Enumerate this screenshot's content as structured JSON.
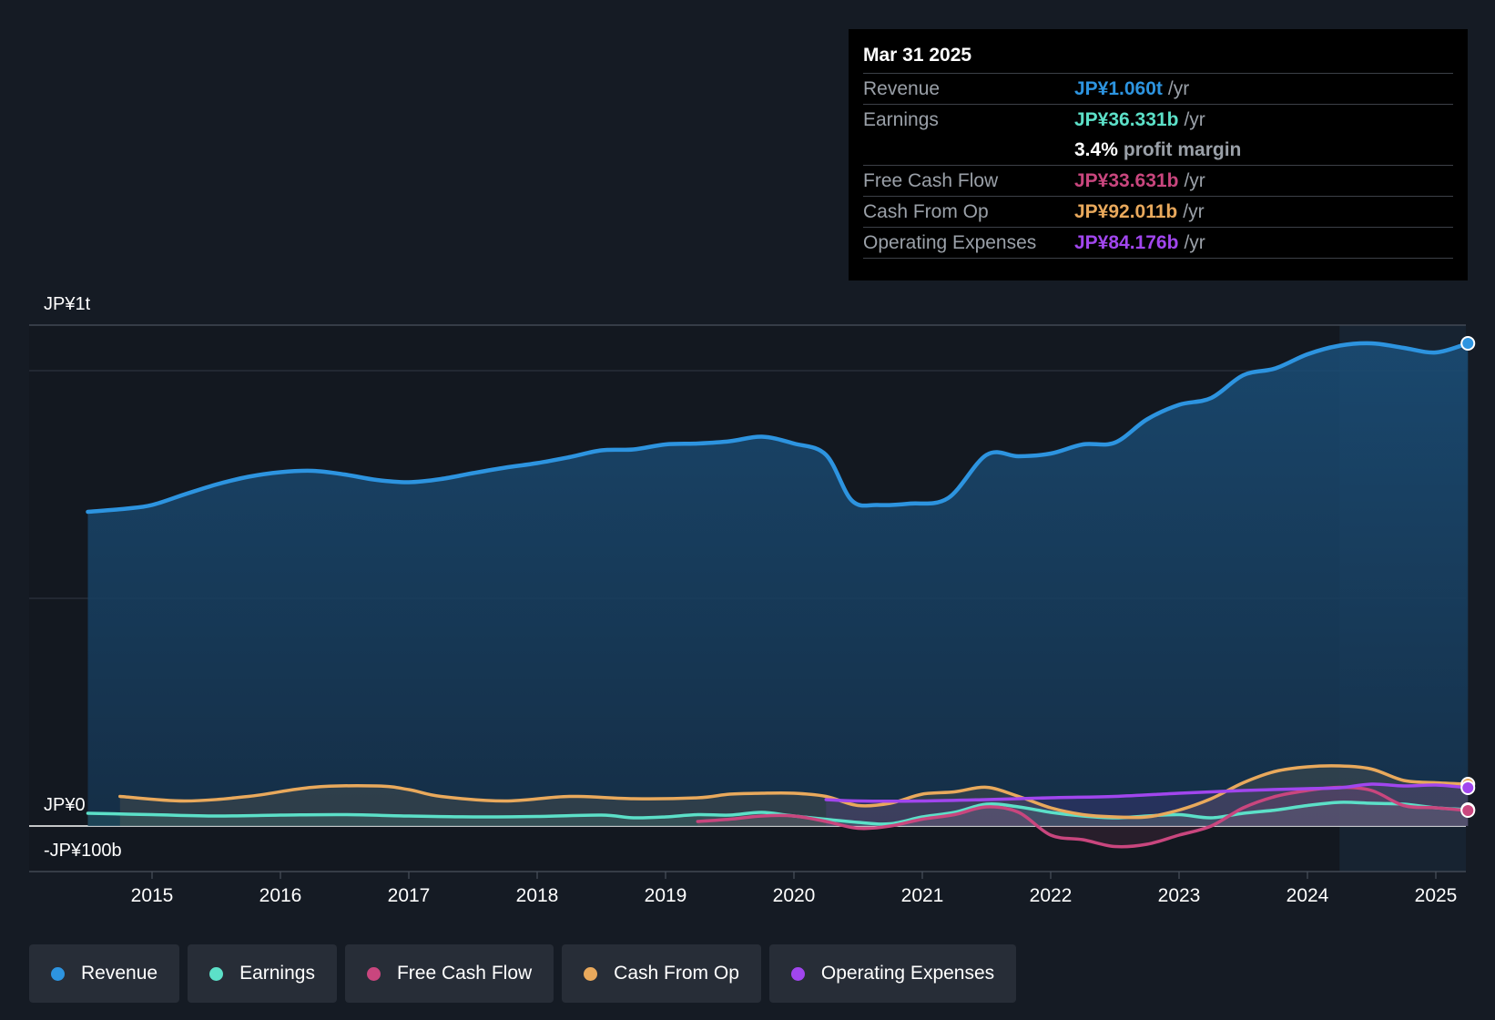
{
  "chart_data": {
    "type": "area",
    "title": "",
    "y_axis": {
      "top_label": "JP¥1t",
      "zero_label": "JP¥0",
      "bottom_label": "-JP¥100b",
      "ylim": [
        -100,
        1100
      ],
      "unit": "JP¥ billions"
    },
    "x_axis": {
      "tick_labels": [
        "2015",
        "2016",
        "2017",
        "2018",
        "2019",
        "2020",
        "2021",
        "2022",
        "2023",
        "2024",
        "2025"
      ],
      "xlim": [
        2014.05,
        2025.25
      ]
    },
    "highlight_start": 2024.25,
    "series": [
      {
        "name": "Revenue",
        "color": "#2d94e0",
        "points": [
          [
            2014.5,
            690
          ],
          [
            2014.8,
            697
          ],
          [
            2015.0,
            705
          ],
          [
            2015.25,
            728
          ],
          [
            2015.5,
            750
          ],
          [
            2015.75,
            767
          ],
          [
            2016.0,
            777
          ],
          [
            2016.25,
            780
          ],
          [
            2016.5,
            772
          ],
          [
            2016.75,
            760
          ],
          [
            2017.0,
            755
          ],
          [
            2017.25,
            762
          ],
          [
            2017.5,
            775
          ],
          [
            2017.75,
            787
          ],
          [
            2018.0,
            797
          ],
          [
            2018.25,
            810
          ],
          [
            2018.5,
            825
          ],
          [
            2018.75,
            827
          ],
          [
            2019.0,
            838
          ],
          [
            2019.25,
            840
          ],
          [
            2019.5,
            845
          ],
          [
            2019.75,
            855
          ],
          [
            2020.0,
            840
          ],
          [
            2020.25,
            815
          ],
          [
            2020.45,
            715
          ],
          [
            2020.65,
            705
          ],
          [
            2020.9,
            708
          ],
          [
            2021.2,
            720
          ],
          [
            2021.5,
            815
          ],
          [
            2021.75,
            812
          ],
          [
            2022.0,
            818
          ],
          [
            2022.25,
            838
          ],
          [
            2022.5,
            842
          ],
          [
            2022.75,
            893
          ],
          [
            2023.0,
            925
          ],
          [
            2023.25,
            940
          ],
          [
            2023.5,
            990
          ],
          [
            2023.75,
            1005
          ],
          [
            2024.0,
            1036
          ],
          [
            2024.25,
            1055
          ],
          [
            2024.5,
            1060
          ],
          [
            2024.75,
            1050
          ],
          [
            2025.0,
            1040
          ],
          [
            2025.25,
            1060
          ]
        ]
      },
      {
        "name": "Earnings",
        "color": "#5ce0c8",
        "points": [
          [
            2014.5,
            28
          ],
          [
            2015.0,
            25
          ],
          [
            2015.5,
            22
          ],
          [
            2016.0,
            24
          ],
          [
            2016.5,
            25
          ],
          [
            2017.0,
            22
          ],
          [
            2017.5,
            20
          ],
          [
            2018.0,
            21
          ],
          [
            2018.5,
            24
          ],
          [
            2018.75,
            18
          ],
          [
            2019.0,
            20
          ],
          [
            2019.25,
            25
          ],
          [
            2019.5,
            24
          ],
          [
            2019.75,
            30
          ],
          [
            2020.0,
            22
          ],
          [
            2020.5,
            8
          ],
          [
            2020.75,
            5
          ],
          [
            2021.0,
            20
          ],
          [
            2021.25,
            30
          ],
          [
            2021.5,
            48
          ],
          [
            2021.75,
            42
          ],
          [
            2022.0,
            30
          ],
          [
            2022.25,
            22
          ],
          [
            2022.5,
            18
          ],
          [
            2022.75,
            22
          ],
          [
            2023.0,
            25
          ],
          [
            2023.25,
            18
          ],
          [
            2023.5,
            28
          ],
          [
            2023.75,
            35
          ],
          [
            2024.0,
            45
          ],
          [
            2024.25,
            52
          ],
          [
            2024.5,
            50
          ],
          [
            2024.75,
            48
          ],
          [
            2025.0,
            40
          ],
          [
            2025.25,
            36
          ]
        ]
      },
      {
        "name": "Free Cash Flow",
        "color": "#c9467e",
        "points": [
          [
            2019.25,
            10
          ],
          [
            2019.5,
            15
          ],
          [
            2019.75,
            22
          ],
          [
            2020.0,
            22
          ],
          [
            2020.25,
            10
          ],
          [
            2020.5,
            -5
          ],
          [
            2020.75,
            0
          ],
          [
            2021.0,
            15
          ],
          [
            2021.25,
            25
          ],
          [
            2021.5,
            42
          ],
          [
            2021.75,
            30
          ],
          [
            2022.0,
            -20
          ],
          [
            2022.25,
            -30
          ],
          [
            2022.5,
            -45
          ],
          [
            2022.75,
            -40
          ],
          [
            2023.0,
            -20
          ],
          [
            2023.25,
            0
          ],
          [
            2023.5,
            40
          ],
          [
            2023.75,
            65
          ],
          [
            2024.0,
            78
          ],
          [
            2024.25,
            85
          ],
          [
            2024.5,
            78
          ],
          [
            2024.75,
            45
          ],
          [
            2025.0,
            40
          ],
          [
            2025.25,
            34
          ]
        ]
      },
      {
        "name": "Cash From Op",
        "color": "#e9a95c",
        "points": [
          [
            2014.75,
            65
          ],
          [
            2015.25,
            55
          ],
          [
            2015.75,
            65
          ],
          [
            2016.25,
            85
          ],
          [
            2016.75,
            88
          ],
          [
            2017.0,
            80
          ],
          [
            2017.25,
            65
          ],
          [
            2017.75,
            55
          ],
          [
            2018.25,
            65
          ],
          [
            2018.75,
            60
          ],
          [
            2019.25,
            62
          ],
          [
            2019.5,
            70
          ],
          [
            2019.75,
            72
          ],
          [
            2020.0,
            72
          ],
          [
            2020.25,
            65
          ],
          [
            2020.5,
            45
          ],
          [
            2020.75,
            50
          ],
          [
            2021.0,
            70
          ],
          [
            2021.25,
            75
          ],
          [
            2021.5,
            85
          ],
          [
            2021.75,
            65
          ],
          [
            2022.0,
            40
          ],
          [
            2022.25,
            25
          ],
          [
            2022.5,
            20
          ],
          [
            2022.75,
            20
          ],
          [
            2023.0,
            35
          ],
          [
            2023.25,
            60
          ],
          [
            2023.5,
            95
          ],
          [
            2023.75,
            120
          ],
          [
            2024.0,
            130
          ],
          [
            2024.25,
            132
          ],
          [
            2024.5,
            125
          ],
          [
            2024.75,
            100
          ],
          [
            2025.0,
            95
          ],
          [
            2025.25,
            92
          ]
        ]
      },
      {
        "name": "Operating Expenses",
        "color": "#a146ee",
        "points": [
          [
            2020.25,
            58
          ],
          [
            2020.5,
            55
          ],
          [
            2021.0,
            55
          ],
          [
            2021.5,
            58
          ],
          [
            2022.0,
            62
          ],
          [
            2022.5,
            65
          ],
          [
            2023.0,
            72
          ],
          [
            2023.5,
            78
          ],
          [
            2024.0,
            82
          ],
          [
            2024.25,
            84
          ],
          [
            2024.5,
            92
          ],
          [
            2024.75,
            88
          ],
          [
            2025.0,
            90
          ],
          [
            2025.25,
            84
          ]
        ]
      }
    ]
  },
  "tooltip": {
    "date": "Mar 31 2025",
    "rows": [
      {
        "label": "Revenue",
        "value": "JP¥1.060t",
        "unit": "/yr",
        "color": "#2d94e0"
      },
      {
        "label": "Earnings",
        "value": "JP¥36.331b",
        "unit": "/yr",
        "color": "#5ce0c8"
      },
      {
        "label": "Free Cash Flow",
        "value": "JP¥33.631b",
        "unit": "/yr",
        "color": "#c9467e"
      },
      {
        "label": "Cash From Op",
        "value": "JP¥92.011b",
        "unit": "/yr",
        "color": "#e9a95c"
      },
      {
        "label": "Operating Expenses",
        "value": "JP¥84.176b",
        "unit": "/yr",
        "color": "#a146ee"
      }
    ],
    "margin_pct": "3.4%",
    "margin_label": "profit margin"
  },
  "legend": [
    {
      "label": "Revenue",
      "color": "#2d94e0"
    },
    {
      "label": "Earnings",
      "color": "#5ce0c8"
    },
    {
      "label": "Free Cash Flow",
      "color": "#c9467e"
    },
    {
      "label": "Cash From Op",
      "color": "#e9a95c"
    },
    {
      "label": "Operating Expenses",
      "color": "#a146ee"
    }
  ]
}
